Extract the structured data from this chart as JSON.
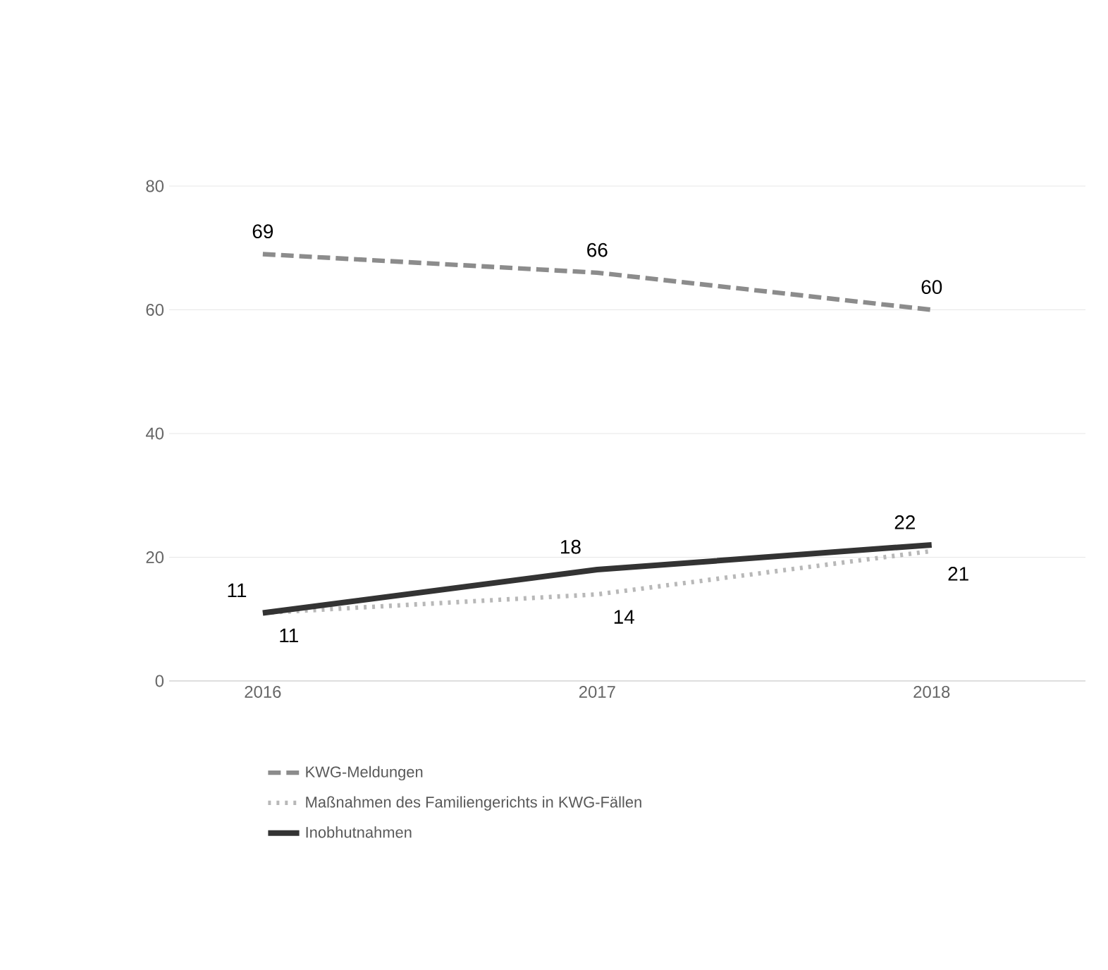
{
  "chart_data": {
    "type": "line",
    "categories": [
      "2016",
      "2017",
      "2018"
    ],
    "series": [
      {
        "name": "KWG-Meldungen",
        "color": "#8c8c8c",
        "line_style": "dashed",
        "values": [
          69,
          66,
          60
        ]
      },
      {
        "name": "Maßnahmen des Familiengerichts in KWG-Fällen",
        "color": "#b8b8b8",
        "line_style": "dotted",
        "values": [
          11,
          14,
          21
        ]
      },
      {
        "name": "Inobhutnahmen",
        "color": "#333333",
        "line_style": "solid",
        "values": [
          11,
          18,
          22
        ]
      }
    ],
    "ylim": [
      0,
      80
    ],
    "yticks": [
      0,
      20,
      40,
      60,
      80
    ],
    "grid": "y",
    "legend": "bottom",
    "data_labels": true,
    "marker": "none"
  }
}
